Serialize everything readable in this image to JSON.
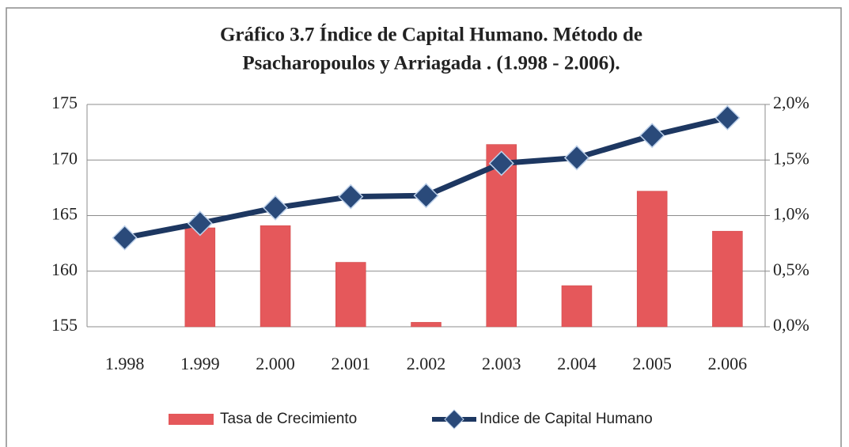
{
  "chart_data": {
    "type": "bar-line",
    "title": [
      "Gráfico 3.7 Índice de Capital Humano. Método de",
      "Psacharopoulos y Arriagada . (1.998 - 2.006)."
    ],
    "categories": [
      "1.998",
      "1.999",
      "2.000",
      "2.001",
      "2.002",
      "2.003",
      "2.004",
      "2.005",
      "2.006"
    ],
    "series": [
      {
        "name": "Tasa de Crecimiento",
        "type": "bar",
        "axis": "y2",
        "color": "#e5585b",
        "values": [
          null,
          0.89,
          0.91,
          0.58,
          0.04,
          1.64,
          0.37,
          1.22,
          0.86
        ]
      },
      {
        "name": "Indice de Capital Humano",
        "type": "line",
        "color": "#1d3761",
        "values": [
          163.0,
          164.3,
          165.7,
          166.7,
          166.8,
          169.7,
          170.2,
          172.2,
          173.8
        ]
      }
    ],
    "ylim": [
      155,
      175
    ],
    "yticks": [
      155,
      160,
      165,
      170,
      175
    ],
    "y2lim": [
      0,
      2
    ],
    "y2ticks": [
      {
        "value": 0,
        "label": "0,0%"
      },
      {
        "value": 0.5,
        "label": "0,5%"
      },
      {
        "value": 1,
        "label": "1,0%"
      },
      {
        "value": 1.5,
        "label": "1,5%"
      },
      {
        "value": 2,
        "label": "2,0%"
      }
    ],
    "grid": true,
    "legend": "bottom"
  }
}
